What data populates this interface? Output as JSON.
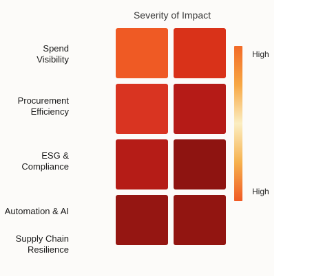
{
  "chart_data": {
    "type": "heatmap",
    "title": "Severity of Impact",
    "rows": [
      {
        "label": "Spend\nVisibility",
        "values": [
          0.15,
          0.35
        ]
      },
      {
        "label": "Procurement\nEfficiency",
        "values": [
          0.35,
          0.6
        ]
      },
      {
        "label": "ESG &\nCompliance",
        "values": [
          0.6,
          0.85
        ]
      },
      {
        "label": "Automation & AI",
        "values": [
          0.8,
          0.8
        ]
      },
      {
        "label": "Supply Chain\nResilience",
        "values": []
      }
    ],
    "cell_colors": [
      [
        "#ef5a24",
        "#d93219"
      ],
      [
        "#d93421",
        "#b51b17"
      ],
      [
        "#b51c17",
        "#8e1411"
      ],
      [
        "#951612",
        "#921511"
      ]
    ],
    "legend": {
      "top_label": "High",
      "bottom_label": "High",
      "gradient": [
        "#f26a28",
        "#f7a744",
        "#fbeec2",
        "#f6b14e",
        "#f05a24"
      ]
    }
  }
}
